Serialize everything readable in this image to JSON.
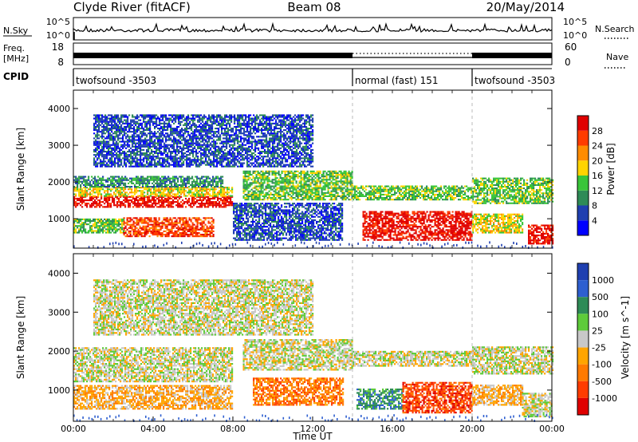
{
  "header": {
    "station": "Clyde River (fitACF)",
    "beam": "Beam 08",
    "date": "20/May/2014"
  },
  "chart_data": {
    "type": "heatmap",
    "time_axis": {
      "xlabel": "Time UT",
      "ticks": [
        "00:00",
        "04:00",
        "08:00",
        "12:00",
        "16:00",
        "20:00",
        "00:00"
      ],
      "range_hours": [
        0,
        24
      ]
    },
    "sky_panel": {
      "left_label": "N.Sky",
      "right_label": "N.Search",
      "left_ticks": [
        "10^5",
        "10^0"
      ],
      "right_ticks": [
        "10^5",
        "10^0"
      ]
    },
    "freq_panel": {
      "left_label_1": "Freq.",
      "left_label_2": "[MHz]",
      "right_label": "Nave",
      "left_ticks": [
        18,
        8
      ],
      "right_ticks": [
        60,
        0
      ]
    },
    "cpid_panel": {
      "label": "CPID",
      "segments": [
        {
          "label": "twofsound -3503",
          "start_hour": 0.0,
          "end_hour": 14.0
        },
        {
          "label": "normal (fast) 151",
          "start_hour": 14.0,
          "end_hour": 20.0
        },
        {
          "label": "twofsound -3503",
          "start_hour": 20.0,
          "end_hour": 24.0
        }
      ]
    },
    "power_panel": {
      "ylabel": "Slant Range [km]",
      "yticks": [
        1000,
        2000,
        3000,
        4000
      ],
      "ylim": [
        200,
        4500
      ],
      "colorbar_label": "Power [dB]",
      "colorbar_ticks": [
        4,
        8,
        12,
        16,
        20,
        24,
        28
      ],
      "colorbar_colors": [
        "#0000ff",
        "#1f3fb0",
        "#2e8b57",
        "#39c539",
        "#ffd400",
        "#ff8c00",
        "#ff3c00",
        "#e00000"
      ],
      "bands": [
        {
          "t0": 0.0,
          "t1": 8.0,
          "r0": 1300,
          "r1": 1600,
          "level": 7
        },
        {
          "t0": 0.0,
          "t1": 8.0,
          "r0": 1600,
          "r1": 1850,
          "level": 4
        },
        {
          "t0": 0.0,
          "t1": 7.5,
          "r0": 1850,
          "r1": 2150,
          "level": 2
        },
        {
          "t0": 0.0,
          "t1": 2.5,
          "r0": 600,
          "r1": 1000,
          "level": 3
        },
        {
          "t0": 2.5,
          "t1": 7.0,
          "r0": 500,
          "r1": 1000,
          "level": 6
        },
        {
          "t0": 1.0,
          "t1": 12.0,
          "r0": 2400,
          "r1": 3800,
          "level": 1
        },
        {
          "t0": 8.5,
          "t1": 14.0,
          "r0": 1500,
          "r1": 2300,
          "level": 3
        },
        {
          "t0": 8.0,
          "t1": 13.5,
          "r0": 400,
          "r1": 1400,
          "level": 1
        },
        {
          "t0": 14.0,
          "t1": 20.0,
          "r0": 1500,
          "r1": 1900,
          "level": 3
        },
        {
          "t0": 14.5,
          "t1": 20.0,
          "r0": 400,
          "r1": 1200,
          "level": 7
        },
        {
          "t0": 20.0,
          "t1": 24.0,
          "r0": 1400,
          "r1": 2100,
          "level": 3
        },
        {
          "t0": 20.0,
          "t1": 22.5,
          "r0": 600,
          "r1": 1100,
          "level": 4
        },
        {
          "t0": 22.8,
          "t1": 24.0,
          "r0": 300,
          "r1": 800,
          "level": 7
        }
      ]
    },
    "velocity_panel": {
      "ylabel": "Slant Range [km]",
      "yticks": [
        1000,
        2000,
        3000,
        4000
      ],
      "ylim": [
        200,
        4500
      ],
      "colorbar_label": "Velocity [m s^-1]",
      "colorbar_ticks": [
        1000,
        500,
        100,
        25,
        -25,
        -100,
        -500,
        -1000
      ],
      "colorbar_colors": [
        "#1f3fb0",
        "#2e5fd0",
        "#2e8b57",
        "#5ecb3a",
        "#c8c8c8",
        "#ffa500",
        "#ff7a00",
        "#ff3c00",
        "#e00000"
      ],
      "bands": [
        {
          "t0": 0.0,
          "t1": 8.0,
          "r0": 1200,
          "r1": 2100,
          "level": 4
        },
        {
          "t0": 0.0,
          "t1": 8.0,
          "r0": 500,
          "r1": 1100,
          "level": 5
        },
        {
          "t0": 1.0,
          "t1": 12.0,
          "r0": 2400,
          "r1": 3800,
          "level": 4
        },
        {
          "t0": 8.5,
          "t1": 14.0,
          "r0": 1500,
          "r1": 2300,
          "level": 4
        },
        {
          "t0": 9.0,
          "t1": 13.5,
          "r0": 600,
          "r1": 1300,
          "level": 6
        },
        {
          "t0": 14.0,
          "t1": 20.0,
          "r0": 1600,
          "r1": 2000,
          "level": 4
        },
        {
          "t0": 14.2,
          "t1": 16.5,
          "r0": 500,
          "r1": 1000,
          "level": 2
        },
        {
          "t0": 16.5,
          "t1": 20.0,
          "r0": 400,
          "r1": 1200,
          "level": 7
        },
        {
          "t0": 20.0,
          "t1": 24.0,
          "r0": 1400,
          "r1": 2100,
          "level": 4
        },
        {
          "t0": 20.0,
          "t1": 22.5,
          "r0": 600,
          "r1": 1100,
          "level": 5
        },
        {
          "t0": 22.5,
          "t1": 24.0,
          "r0": 300,
          "r1": 900,
          "level": 4
        }
      ]
    }
  }
}
